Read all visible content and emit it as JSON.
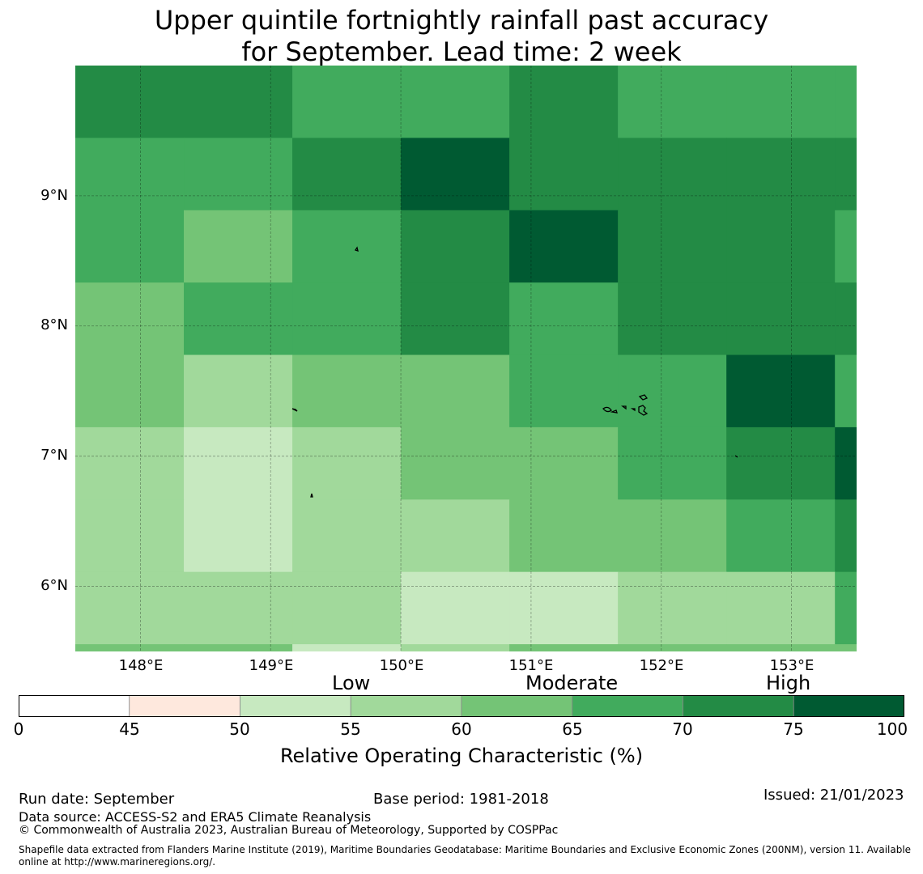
{
  "title": {
    "line1": "Upper quintile fortnightly rainfall past accuracy",
    "line2": "for September. Lead time: 2 week"
  },
  "map": {
    "lon_range": [
      147.5,
      153.5
    ],
    "lat_range": [
      5.5,
      10.0
    ],
    "lat_labels": [
      "9°N",
      "8°N",
      "7°N",
      "6°N"
    ],
    "lat_values": [
      9,
      8,
      7,
      6
    ],
    "lon_labels": [
      "148°E",
      "149°E",
      "150°E",
      "151°E",
      "152°E",
      "153°E"
    ],
    "lon_values": [
      148,
      149,
      150,
      151,
      152,
      153
    ],
    "grid_lines": true,
    "colors": [
      "#ffffff",
      "#fee8dd",
      "#c7e9c0",
      "#a1d99b",
      "#74c476",
      "#41ab5d",
      "#238b45",
      "#005a32"
    ],
    "cell_levels_rows_north_to_south": [
      [
        6,
        6,
        5,
        5,
        6,
        5,
        5,
        5
      ],
      [
        5,
        5,
        6,
        7,
        6,
        6,
        6,
        6
      ],
      [
        5,
        4,
        5,
        6,
        7,
        6,
        6,
        5
      ],
      [
        4,
        5,
        5,
        6,
        5,
        6,
        6,
        6
      ],
      [
        4,
        3,
        4,
        4,
        5,
        5,
        7,
        5
      ],
      [
        3,
        2,
        3,
        4,
        4,
        5,
        6,
        7
      ],
      [
        3,
        2,
        3,
        3,
        4,
        4,
        5,
        6
      ],
      [
        3,
        3,
        3,
        2,
        2,
        3,
        3,
        5
      ],
      [
        4,
        4,
        2,
        3,
        4,
        4,
        4,
        4
      ]
    ]
  },
  "colorbar": {
    "categories": [
      "Low",
      "Moderate",
      "High"
    ],
    "tick_labels": [
      "0",
      "45",
      "50",
      "55",
      "60",
      "65",
      "70",
      "75",
      "100"
    ],
    "title": "Relative Operating Characteristic (%)"
  },
  "footer": {
    "run_date": "Run date: September",
    "base_period": "Base period: 1981-2018",
    "issued": "Issued: 21/01/2023",
    "data_source": "Data source: ACCESS-S2 and ERA5 Climate Reanalysis",
    "copyright": "© Commonwealth of Australia 2023, Australian Bureau of Meteorology, Supported by COSPPac",
    "shapefile_line1": "Shapefile data extracted from Flanders Marine Institute (2019), Maritime Boundaries Geodatabase: Maritime Boundaries and Exclusive Economic Zones (200NM), version 11. Available",
    "shapefile_line2": "online at http://www.marineregions.org/."
  }
}
